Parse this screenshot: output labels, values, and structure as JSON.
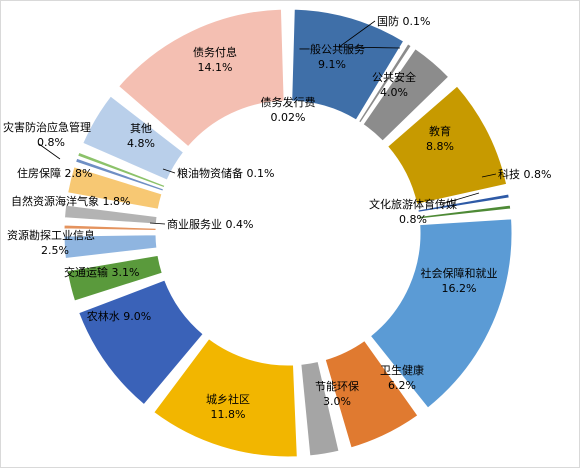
{
  "chart_data": {
    "type": "pie",
    "variant": "exploded-donut",
    "title": "",
    "slices": [
      {
        "name": "一般公共服务",
        "value": 9.1,
        "label_value": "9.1%",
        "color": "#3f6fa8"
      },
      {
        "name": "国防",
        "value": 0.1,
        "label_value": "0.1%",
        "color": "#8c8c8c"
      },
      {
        "name": "公共安全",
        "value": 4.0,
        "label_value": "4.0%",
        "color": "#8c8c8c"
      },
      {
        "name": "教育",
        "value": 8.8,
        "label_value": "8.8%",
        "color": "#c79a00"
      },
      {
        "name": "科技",
        "value": 0.8,
        "label_value": "0.8%",
        "color": "#2e5aa6"
      },
      {
        "name": "文化旅游体育传媒",
        "value": 0.8,
        "label_value": "0.8%",
        "color": "#4e8a36"
      },
      {
        "name": "社会保障和就业",
        "value": 16.2,
        "label_value": "16.2%",
        "color": "#5b9bd5"
      },
      {
        "name": "卫生健康",
        "value": 6.2,
        "label_value": "6.2%",
        "color": "#e07a30"
      },
      {
        "name": "节能环保",
        "value": 3.0,
        "label_value": "3.0%",
        "color": "#a5a5a5"
      },
      {
        "name": "城乡社区",
        "value": 11.8,
        "label_value": "11.8%",
        "color": "#f2b600"
      },
      {
        "name": "农林水",
        "value": 9.0,
        "label_value": "9.0%",
        "color": "#3a62b8"
      },
      {
        "name": "交通运输",
        "value": 3.1,
        "label_value": "3.1%",
        "color": "#5a9a3c"
      },
      {
        "name": "资源勘探工业信息",
        "value": 2.5,
        "label_value": "2.5%",
        "color": "#8fb5e0"
      },
      {
        "name": "商业服务业",
        "value": 0.4,
        "label_value": "0.4%",
        "color": "#e4935e"
      },
      {
        "name": "自然资源海洋气象",
        "value": 1.8,
        "label_value": "1.8%",
        "color": "#b3b3b3"
      },
      {
        "name": "住房保障",
        "value": 2.8,
        "label_value": "2.8%",
        "color": "#f7c873"
      },
      {
        "name": "粮油物资储备",
        "value": 0.1,
        "label_value": "0.1%",
        "color": "#6f8fc4"
      },
      {
        "name": "灾害防治应急管理",
        "value": 0.8,
        "label_value": "0.8%",
        "color": "#8cc26a"
      },
      {
        "name": "其他",
        "value": 4.8,
        "label_value": "4.8%",
        "color": "#b9cfea"
      },
      {
        "name": "债务付息",
        "value": 14.1,
        "label_value": "14.1%",
        "color": "#f4bfb2"
      },
      {
        "name": "债务发行费",
        "value": 0.02,
        "label_value": "0.02%",
        "color": "#ffffff"
      }
    ]
  }
}
